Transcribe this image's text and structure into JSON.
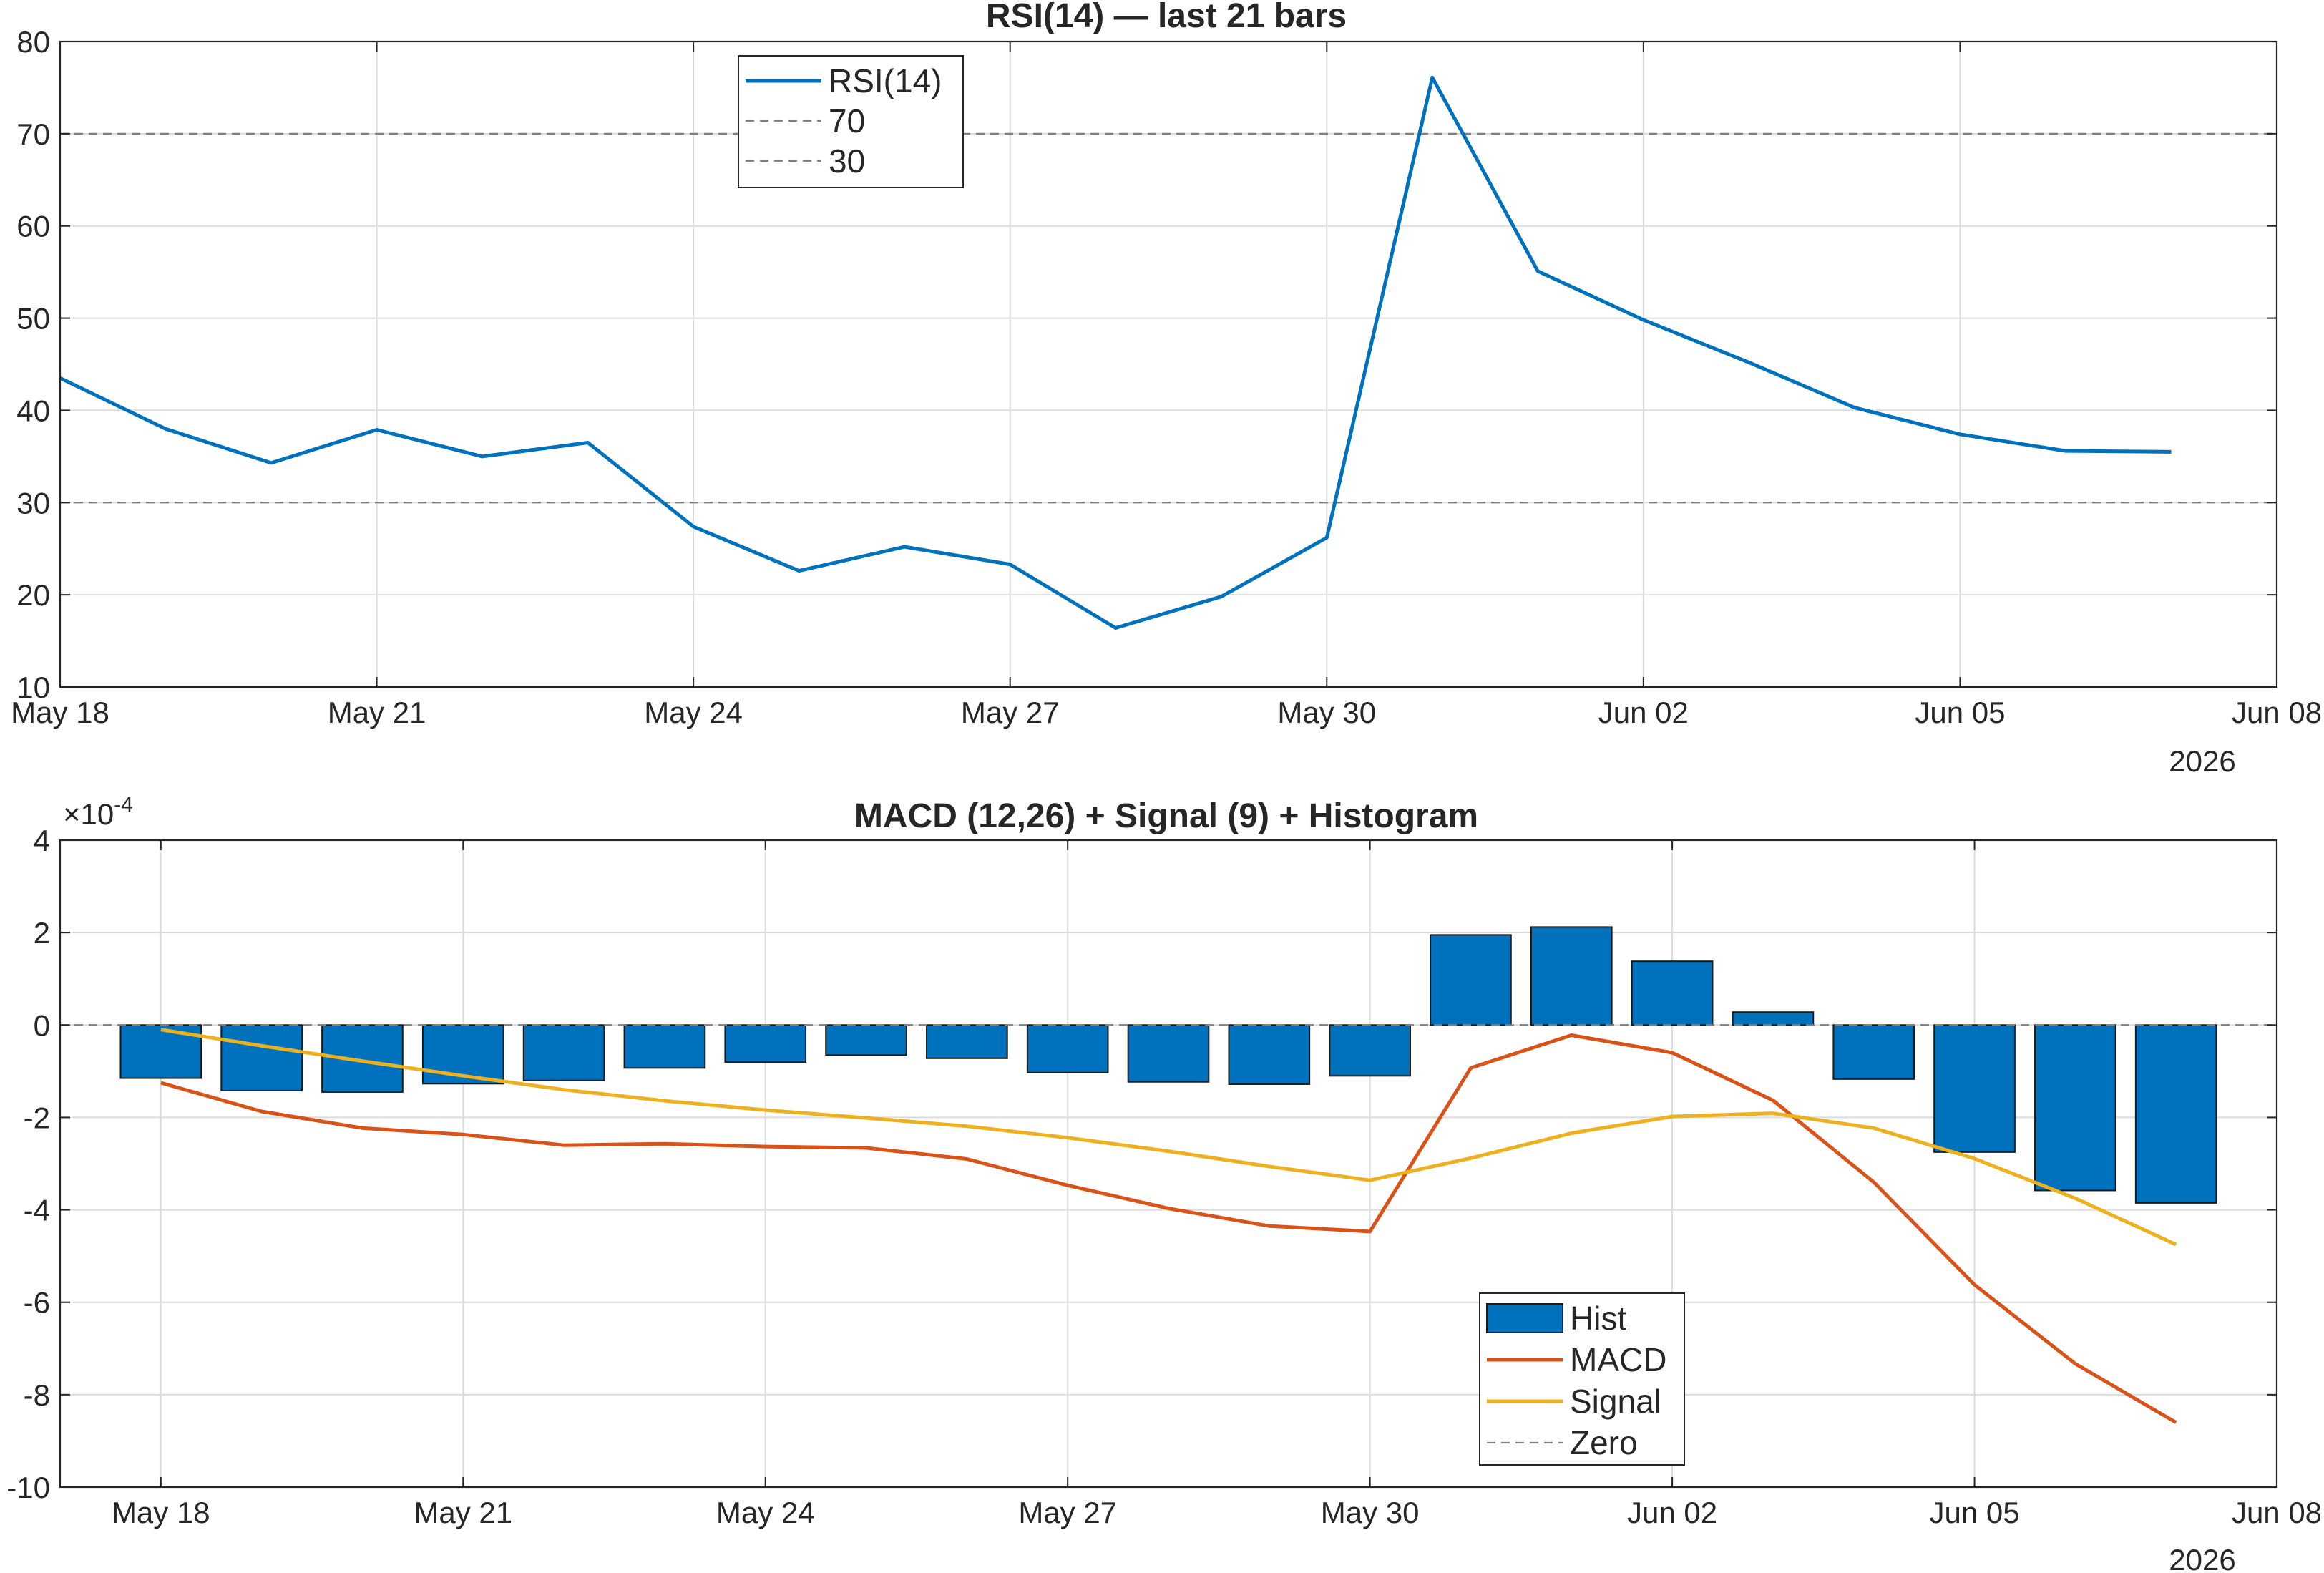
{
  "charts": [
    {
      "title": "RSI(14) — last 21 bars",
      "year_label": "2026"
    },
    {
      "title": "MACD (12,26) + Signal (9) + Histogram",
      "exponent_label": "×10",
      "exponent_power": "-4",
      "year_label": "2026"
    }
  ],
  "chart_data": [
    {
      "type": "line",
      "title": "RSI(14) — last 21 bars",
      "xlabel": "",
      "ylabel": "",
      "x": [
        "2026-05-18",
        "2026-05-19",
        "2026-05-20",
        "2026-05-21",
        "2026-05-22",
        "2026-05-23",
        "2026-05-24",
        "2026-05-25",
        "2026-05-26",
        "2026-05-27",
        "2026-05-28",
        "2026-05-29",
        "2026-05-30",
        "2026-05-31",
        "2026-06-01",
        "2026-06-02",
        "2026-06-03",
        "2026-06-04",
        "2026-06-05",
        "2026-06-06",
        "2026-06-07"
      ],
      "xlim": [
        "2026-05-18",
        "2026-06-08"
      ],
      "xticks": [
        "May 18",
        "May 21",
        "May 24",
        "May 27",
        "May 30",
        "Jun 02",
        "Jun 05",
        "Jun 08"
      ],
      "xtick_dates": [
        "2026-05-18",
        "2026-05-21",
        "2026-05-24",
        "2026-05-27",
        "2026-05-30",
        "2026-06-02",
        "2026-06-05",
        "2026-06-08"
      ],
      "ylim": [
        10,
        80
      ],
      "yticks": [
        "10",
        "20",
        "30",
        "40",
        "50",
        "60",
        "70",
        "80"
      ],
      "grid": true,
      "legend_position": "top-center",
      "series": [
        {
          "name": "RSI(14)",
          "color": "#0072BD",
          "style": "solid",
          "values": [
            43.5,
            38.0,
            34.3,
            37.9,
            35.0,
            36.5,
            27.4,
            22.6,
            25.2,
            23.3,
            16.4,
            19.8,
            26.2,
            76.1,
            55.1,
            49.8,
            45.2,
            40.3,
            37.4,
            35.6,
            35.5
          ]
        },
        {
          "name": "70",
          "color": "#808080",
          "style": "dashed",
          "constant": 70
        },
        {
          "name": "30",
          "color": "#808080",
          "style": "dashed",
          "constant": 30
        }
      ]
    },
    {
      "type": "bar",
      "title": "MACD (12,26) + Signal (9) + Histogram",
      "xlabel": "",
      "ylabel": "",
      "y_exponent": -4,
      "x": [
        "2026-05-18",
        "2026-05-19",
        "2026-05-20",
        "2026-05-21",
        "2026-05-22",
        "2026-05-23",
        "2026-05-24",
        "2026-05-25",
        "2026-05-26",
        "2026-05-27",
        "2026-05-28",
        "2026-05-29",
        "2026-05-30",
        "2026-05-31",
        "2026-06-01",
        "2026-06-02",
        "2026-06-03",
        "2026-06-04",
        "2026-06-05",
        "2026-06-06",
        "2026-06-07"
      ],
      "xlim": [
        "2026-05-17",
        "2026-06-08"
      ],
      "xticks": [
        "May 18",
        "May 21",
        "May 24",
        "May 27",
        "May 30",
        "Jun 02",
        "Jun 05",
        "Jun 08"
      ],
      "xtick_dates": [
        "2026-05-18",
        "2026-05-21",
        "2026-05-24",
        "2026-05-27",
        "2026-05-30",
        "2026-06-02",
        "2026-06-05",
        "2026-06-08"
      ],
      "ylim": [
        -10,
        4
      ],
      "yticks": [
        "-10",
        "-8",
        "-6",
        "-4",
        "-2",
        "0",
        "2",
        "4"
      ],
      "grid": true,
      "legend_position": "bottom-center",
      "series": [
        {
          "name": "Hist",
          "kind": "bar",
          "color": "#0072BD",
          "values": [
            -1.15,
            -1.42,
            -1.45,
            -1.27,
            -1.2,
            -0.93,
            -0.8,
            -0.65,
            -0.72,
            -1.03,
            -1.23,
            -1.28,
            -1.1,
            1.95,
            2.12,
            1.38,
            0.28,
            -1.17,
            -2.75,
            -3.58,
            -3.85
          ]
        },
        {
          "name": "MACD",
          "kind": "line",
          "color": "#D95319",
          "values": [
            -1.25,
            -1.87,
            -2.23,
            -2.37,
            -2.6,
            -2.57,
            -2.63,
            -2.66,
            -2.9,
            -3.47,
            -3.97,
            -4.35,
            -4.47,
            -0.93,
            -0.22,
            -0.6,
            -1.63,
            -3.4,
            -5.62,
            -7.33,
            -8.6
          ]
        },
        {
          "name": "Signal",
          "kind": "line",
          "color": "#EDB120",
          "values": [
            -0.1,
            -0.45,
            -0.78,
            -1.1,
            -1.4,
            -1.64,
            -1.84,
            -2.01,
            -2.19,
            -2.44,
            -2.73,
            -3.06,
            -3.36,
            -2.88,
            -2.34,
            -1.98,
            -1.91,
            -2.23,
            -2.89,
            -3.75,
            -4.75
          ]
        },
        {
          "name": "Zero",
          "kind": "line",
          "color": "#808080",
          "style": "dashed",
          "constant": 0
        }
      ]
    }
  ]
}
